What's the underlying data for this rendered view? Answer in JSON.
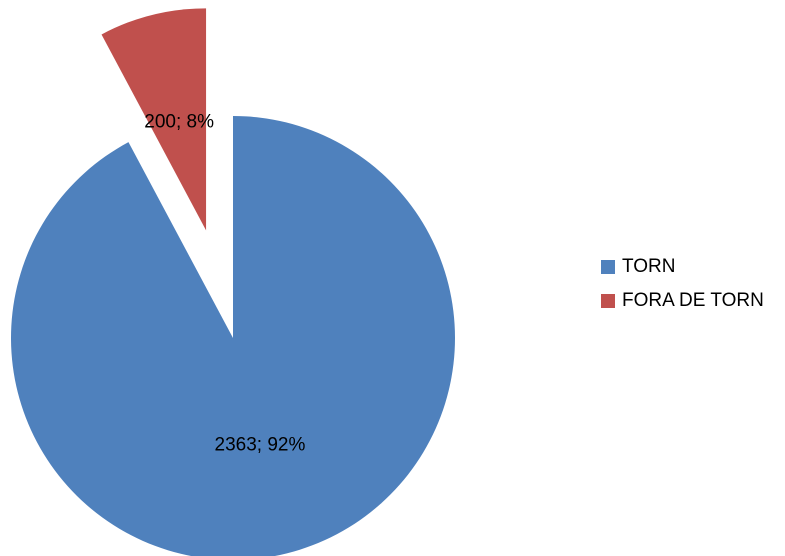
{
  "chart_data": {
    "type": "pie",
    "categories": [
      "TORN",
      "FORA DE TORN"
    ],
    "values": [
      2363,
      200
    ],
    "value_labels": [
      "2363; 92%",
      "200; 8%"
    ],
    "colors": [
      "#4f81bd",
      "#c0504d"
    ],
    "exploded": [
      false,
      true
    ],
    "legend": "right"
  }
}
